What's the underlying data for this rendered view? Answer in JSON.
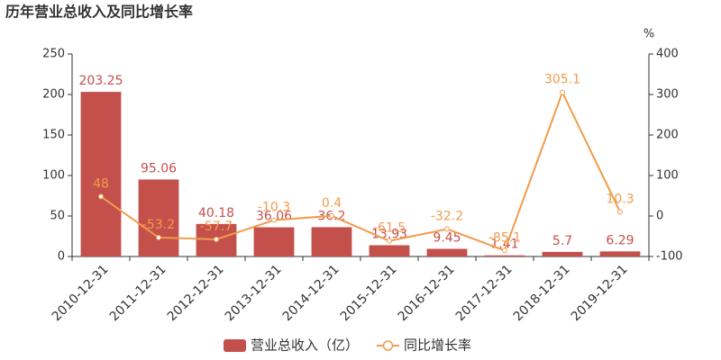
{
  "chart_data": {
    "type": "bar",
    "title": "历年营业总收入及同比增长率",
    "categories": [
      "2010-12-31",
      "2011-12-31",
      "2012-12-31",
      "2013-12-31",
      "2014-12-31",
      "2015-12-31",
      "2016-12-31",
      "2017-12-31",
      "2018-12-31",
      "2019-12-31"
    ],
    "series": [
      {
        "name": "营业总收入（亿）",
        "type": "bar",
        "color": "#c4504c",
        "values": [
          203.25,
          95.06,
          40.18,
          36.06,
          36.2,
          13.93,
          9.45,
          1.41,
          5.7,
          6.29
        ]
      },
      {
        "name": "同比增长率",
        "type": "line",
        "axis": "y2",
        "color": "#f29b4c",
        "values": [
          48,
          -53.2,
          -57.7,
          -10.3,
          0.4,
          -61.5,
          -32.2,
          -85.1,
          305.1,
          10.3
        ]
      }
    ],
    "ylim": [
      0,
      250
    ],
    "yticks": [
      0,
      50,
      100,
      150,
      200,
      250
    ],
    "y2lim": [
      -100,
      400
    ],
    "y2ticks": [
      -100,
      0,
      100,
      200,
      300,
      400
    ],
    "y2_label": "%",
    "legend": "bottom"
  }
}
